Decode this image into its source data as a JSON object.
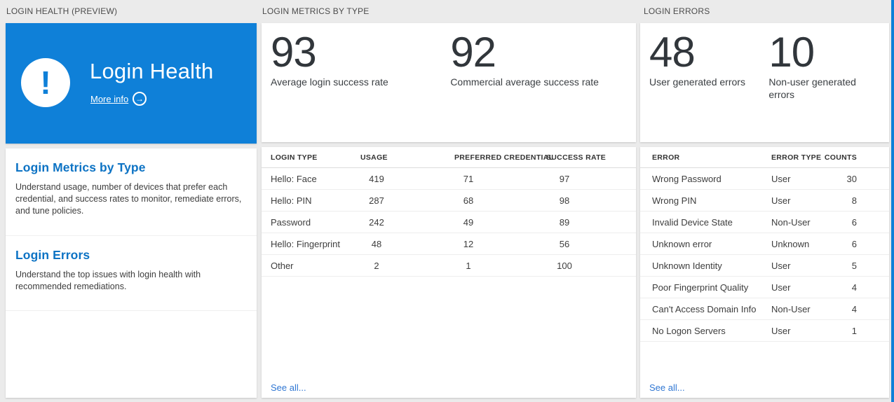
{
  "colors": {
    "tile_blue": "#0f80d8",
    "heading_blue": "#0d73c4",
    "see_all_blue": "#3077d3",
    "stat_number": "#31363b",
    "page_background": "#ebebeb"
  },
  "login_health": {
    "section_header": "LOGIN HEALTH (PREVIEW)",
    "tile": {
      "title": "Login Health",
      "more_info_label": "More info",
      "alert_icon_glyph": "!",
      "arrow_icon_glyph": "→"
    },
    "nav_items": [
      {
        "title": "Login Metrics by Type",
        "description": "Understand usage, number of devices that prefer each credential, and success rates to monitor, remediate errors, and tune policies."
      },
      {
        "title": "Login Errors",
        "description": "Understand the top issues with login health with recommended remediations."
      }
    ]
  },
  "login_metrics": {
    "section_header": "LOGIN METRICS BY TYPE",
    "stats": [
      {
        "value": "93",
        "label": "Average login success rate"
      },
      {
        "value": "92",
        "label": "Commercial average success rate"
      }
    ],
    "table": {
      "columns": [
        "LOGIN TYPE",
        "USAGE",
        "PREFERRED CREDENTIAL",
        "SUCCESS RATE"
      ],
      "rows": [
        [
          "Hello: Face",
          "419",
          "71",
          "97"
        ],
        [
          "Hello: PIN",
          "287",
          "68",
          "98"
        ],
        [
          "Password",
          "242",
          "49",
          "89"
        ],
        [
          "Hello: Fingerprint",
          "48",
          "12",
          "56"
        ],
        [
          "Other",
          "2",
          "1",
          "100"
        ]
      ]
    },
    "see_all_label": "See all..."
  },
  "login_errors": {
    "section_header": "LOGIN ERRORS",
    "stats": [
      {
        "value": "48",
        "label": "User generated errors"
      },
      {
        "value": "10",
        "label": "Non-user generated errors"
      }
    ],
    "table": {
      "columns": [
        "ERROR",
        "ERROR TYPE",
        "COUNTS"
      ],
      "rows": [
        [
          "Wrong Password",
          "User",
          "30"
        ],
        [
          "Wrong PIN",
          "User",
          "8"
        ],
        [
          "Invalid Device State",
          "Non-User",
          "6"
        ],
        [
          "Unknown error",
          "Unknown",
          "6"
        ],
        [
          "Unknown Identity",
          "User",
          "5"
        ],
        [
          "Poor Fingerprint Quality",
          "User",
          "4"
        ],
        [
          "Can't Access Domain Info",
          "Non-User",
          "4"
        ],
        [
          "No Logon Servers",
          "User",
          "1"
        ]
      ]
    },
    "see_all_label": "See all..."
  }
}
